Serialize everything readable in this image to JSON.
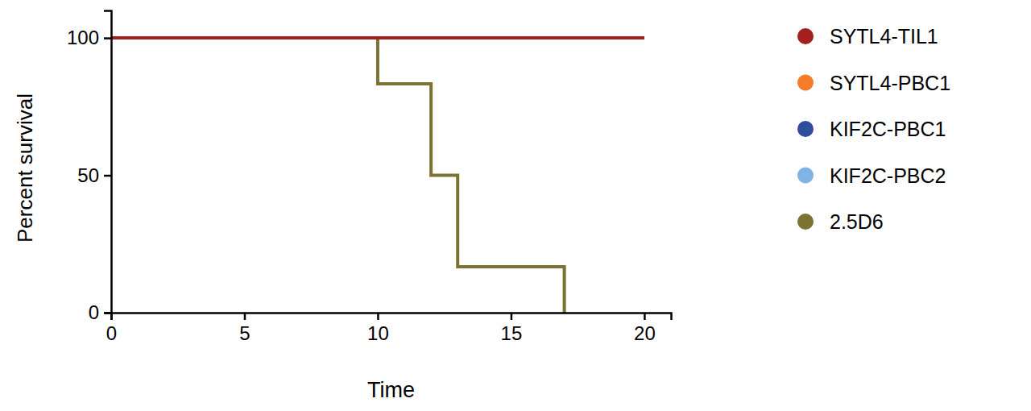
{
  "chart_data": {
    "type": "line",
    "line_style": "step",
    "x_label": "Time",
    "y_label": "Percent survival",
    "xlim": [
      0,
      21
    ],
    "xticks": [
      0,
      5,
      10,
      15,
      20
    ],
    "ylim": [
      0,
      110
    ],
    "yticks": [
      0,
      50,
      100
    ],
    "legend": "right",
    "series": [
      {
        "name": "SYTL4-TIL1",
        "color": "#a3201f",
        "x": [
          0,
          20
        ],
        "values": [
          100,
          100
        ]
      },
      {
        "name": "SYTL4-PBC1",
        "color": "#f47c2a",
        "x": [
          0,
          20
        ],
        "values": [
          100,
          100
        ]
      },
      {
        "name": "KIF2C-PBC1",
        "color": "#2e4d9c",
        "x": [
          0,
          20
        ],
        "values": [
          100,
          100
        ]
      },
      {
        "name": "KIF2C-PBC2",
        "color": "#7eb3e3",
        "x": [
          0,
          20
        ],
        "values": [
          100,
          100
        ]
      },
      {
        "name": "2.5D6",
        "color": "#7b7234",
        "x": [
          0,
          10,
          12,
          13,
          17
        ],
        "values": [
          100,
          83.3,
          50,
          16.7,
          0
        ]
      }
    ]
  }
}
